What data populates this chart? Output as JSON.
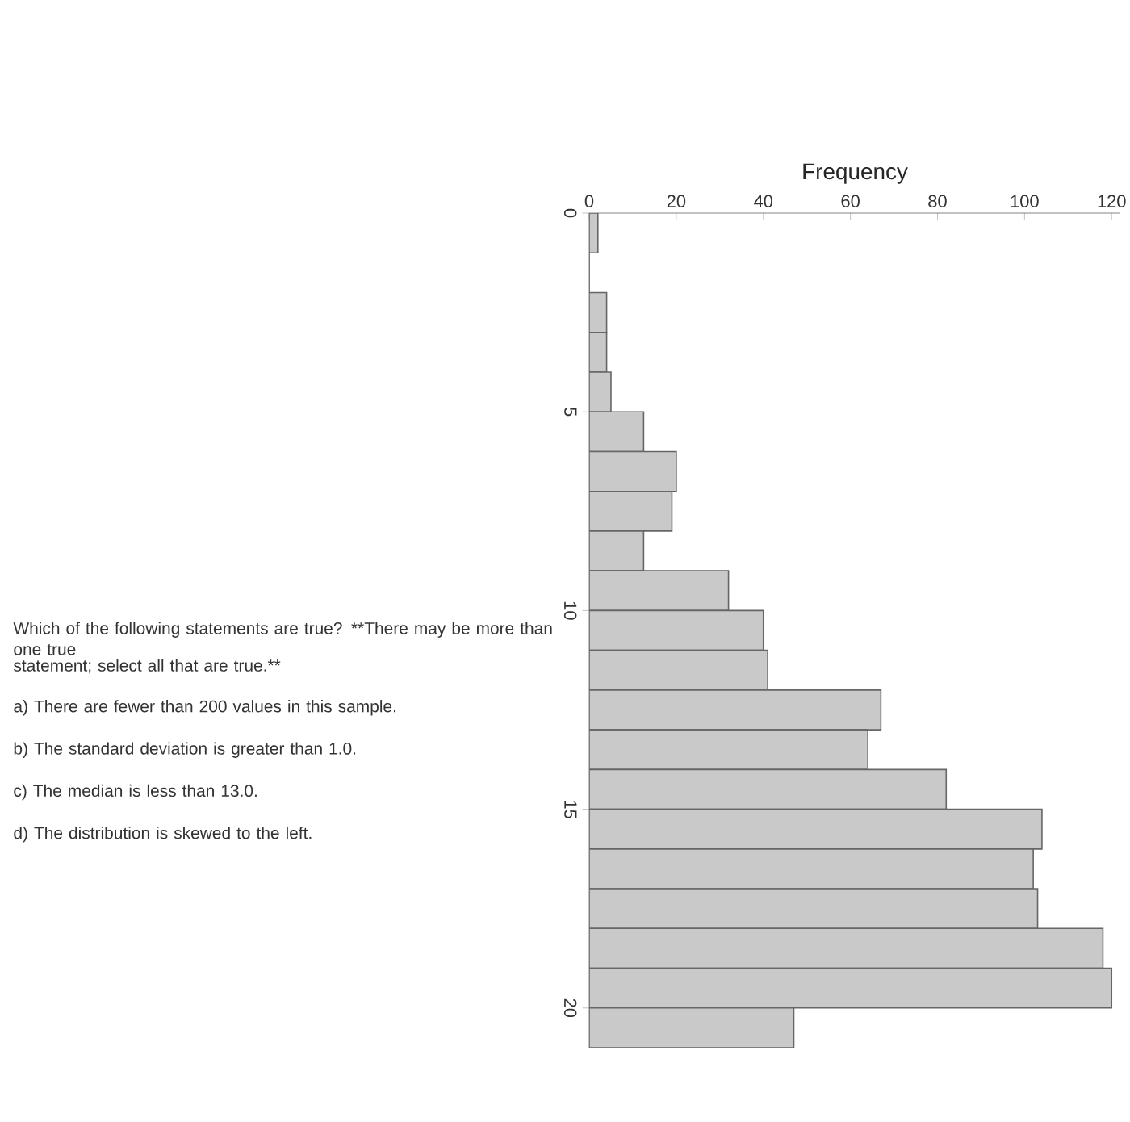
{
  "chart_data": {
    "type": "histogram",
    "orientation": "horizontal",
    "xlabel": "Frequency",
    "bins": [
      0,
      1,
      2,
      3,
      4,
      5,
      6,
      7,
      8,
      9,
      10,
      11,
      12,
      13,
      14,
      15,
      16,
      17,
      18,
      19,
      20,
      21
    ],
    "values": [
      2,
      0,
      4,
      4,
      5,
      12.5,
      20,
      19,
      12.5,
      32,
      40,
      41,
      67,
      64,
      82,
      104,
      102,
      103,
      118,
      120,
      47
    ],
    "color": "#c9c9c9",
    "xlim": [
      0,
      122
    ],
    "xticks": [
      0,
      20,
      40,
      60,
      80,
      100,
      120
    ],
    "ylim": [
      21,
      0
    ],
    "yticks": [
      0,
      5,
      10,
      15,
      20
    ],
    "annotations": [
      "Which of the following statements are true? **There may be more than one true",
      "statement; select all that are true.**",
      "a) There are fewer than 200 values in this sample.",
      "b) The standard deviation is greater than 1.0.",
      "c) The median is less than 13.0.",
      "d) The distribution is skewed to the left."
    ]
  }
}
